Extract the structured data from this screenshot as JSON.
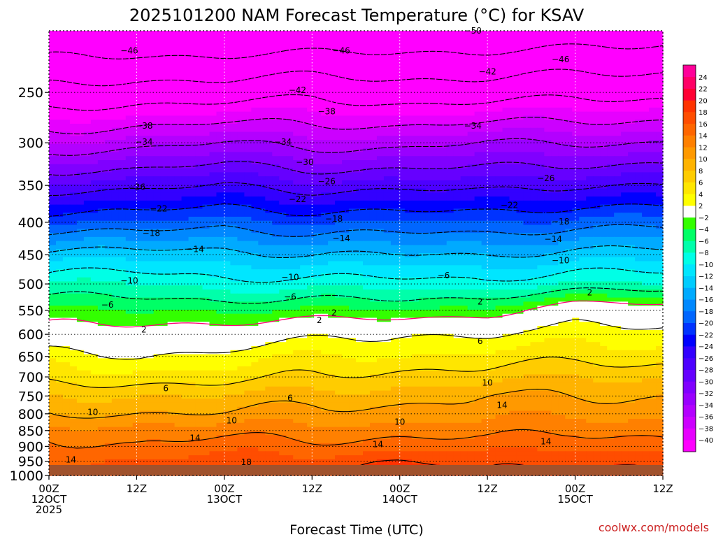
{
  "chart_data": {
    "type": "heatmap",
    "title": "2025101200 NAM Forecast Temperature (°C) for KSAV",
    "xlabel": "Forecast Time (UTC)",
    "ylabel": "",
    "credit": "coolwx.com/models",
    "x_range_hours": [
      0,
      84
    ],
    "x_ticks": [
      {
        "h": 0,
        "lines": [
          "00Z",
          "12OCT",
          "2025"
        ]
      },
      {
        "h": 12,
        "lines": [
          "12Z"
        ]
      },
      {
        "h": 24,
        "lines": [
          "00Z",
          "13OCT"
        ]
      },
      {
        "h": 36,
        "lines": [
          "12Z"
        ]
      },
      {
        "h": 48,
        "lines": [
          "00Z",
          "14OCT"
        ]
      },
      {
        "h": 60,
        "lines": [
          "12Z"
        ]
      },
      {
        "h": 72,
        "lines": [
          "00Z",
          "15OCT"
        ]
      },
      {
        "h": 84,
        "lines": [
          "12Z"
        ]
      }
    ],
    "y_axis": {
      "units": "hPa",
      "scale": "log-pressure",
      "top": 200,
      "bottom": 1000
    },
    "y_ticks": [
      250,
      300,
      350,
      400,
      450,
      500,
      550,
      600,
      650,
      700,
      750,
      800,
      850,
      900,
      950,
      1000
    ],
    "colorbar": {
      "bounds": [
        -42,
        -40,
        -38,
        -36,
        -34,
        -32,
        -30,
        -28,
        -26,
        -24,
        -22,
        -20,
        -18,
        -16,
        -14,
        -12,
        -10,
        -8,
        -6,
        -4,
        -2,
        2,
        4,
        6,
        8,
        10,
        12,
        14,
        16,
        18,
        20,
        22,
        24,
        26
      ],
      "colors": [
        "#ff00ff",
        "#e600ff",
        "#cc00ff",
        "#b300ff",
        "#9900ff",
        "#8000ff",
        "#6600ff",
        "#4d00ff",
        "#3300ff",
        "#0000ff",
        "#0033ff",
        "#0066ff",
        "#0088ff",
        "#00aaff",
        "#00ccff",
        "#00e6ff",
        "#00ffe6",
        "#00ffaa",
        "#00ff66",
        "#33ff00",
        "#ffffff",
        "#ffff00",
        "#ffe600",
        "#ffcc00",
        "#ffb300",
        "#ff9900",
        "#ff8000",
        "#ff6600",
        "#ff4d00",
        "#ff3300",
        "#ff0033",
        "#ff0066",
        "#ff0099"
      ],
      "labels": [
        -40,
        -38,
        -36,
        -34,
        -32,
        -30,
        -28,
        -26,
        -24,
        -22,
        -20,
        -18,
        -16,
        -14,
        -12,
        -10,
        -8,
        -6,
        -4,
        -2,
        2,
        4,
        6,
        8,
        10,
        12,
        14,
        16,
        18,
        20,
        22,
        24
      ]
    },
    "profiles": [
      {
        "h": 0,
        "levels": [
          [
            200,
            -54
          ],
          [
            250,
            -45
          ],
          [
            300,
            -36
          ],
          [
            350,
            -27
          ],
          [
            400,
            -20
          ],
          [
            450,
            -13
          ],
          [
            500,
            -8
          ],
          [
            550,
            -4
          ],
          [
            600,
            -1
          ],
          [
            650,
            3
          ],
          [
            700,
            5
          ],
          [
            750,
            8
          ],
          [
            800,
            10
          ],
          [
            850,
            13
          ],
          [
            900,
            15
          ],
          [
            950,
            16
          ],
          [
            1000,
            18
          ]
        ]
      },
      {
        "h": 12,
        "levels": [
          [
            200,
            -54
          ],
          [
            250,
            -44
          ],
          [
            300,
            -35
          ],
          [
            350,
            -27
          ],
          [
            400,
            -20
          ],
          [
            450,
            -13
          ],
          [
            500,
            -8
          ],
          [
            550,
            -4
          ],
          [
            600,
            -0.5
          ],
          [
            650,
            2
          ],
          [
            700,
            5
          ],
          [
            750,
            8
          ],
          [
            800,
            10
          ],
          [
            850,
            13
          ],
          [
            900,
            14
          ],
          [
            950,
            16
          ],
          [
            1000,
            17
          ]
        ]
      },
      {
        "h": 24,
        "levels": [
          [
            200,
            -54
          ],
          [
            250,
            -44
          ],
          [
            300,
            -34
          ],
          [
            350,
            -26
          ],
          [
            400,
            -19
          ],
          [
            450,
            -13
          ],
          [
            500,
            -9
          ],
          [
            550,
            -4
          ],
          [
            600,
            0
          ],
          [
            650,
            3
          ],
          [
            700,
            5
          ],
          [
            750,
            8
          ],
          [
            800,
            10
          ],
          [
            850,
            13
          ],
          [
            900,
            15
          ],
          [
            950,
            17
          ],
          [
            1000,
            18
          ]
        ]
      },
      {
        "h": 36,
        "levels": [
          [
            200,
            -54
          ],
          [
            250,
            -43
          ],
          [
            300,
            -35
          ],
          [
            350,
            -27
          ],
          [
            400,
            -20
          ],
          [
            450,
            -14
          ],
          [
            500,
            -9
          ],
          [
            550,
            -4
          ],
          [
            600,
            1
          ],
          [
            650,
            4
          ],
          [
            700,
            6
          ],
          [
            750,
            9
          ],
          [
            800,
            11
          ],
          [
            850,
            13
          ],
          [
            900,
            15
          ],
          [
            950,
            17
          ],
          [
            1000,
            18
          ]
        ]
      },
      {
        "h": 48,
        "levels": [
          [
            200,
            -53
          ],
          [
            250,
            -44
          ],
          [
            300,
            -35
          ],
          [
            350,
            -27
          ],
          [
            400,
            -20
          ],
          [
            450,
            -14
          ],
          [
            500,
            -9
          ],
          [
            550,
            -4
          ],
          [
            600,
            2
          ],
          [
            650,
            4
          ],
          [
            700,
            7
          ],
          [
            750,
            9
          ],
          [
            800,
            11
          ],
          [
            850,
            13
          ],
          [
            900,
            15
          ],
          [
            950,
            18
          ],
          [
            1000,
            20
          ]
        ]
      },
      {
        "h": 60,
        "levels": [
          [
            200,
            -53
          ],
          [
            250,
            -44
          ],
          [
            300,
            -34
          ],
          [
            350,
            -27
          ],
          [
            400,
            -20
          ],
          [
            450,
            -14
          ],
          [
            500,
            -9
          ],
          [
            550,
            -3
          ],
          [
            600,
            2
          ],
          [
            650,
            5
          ],
          [
            700,
            7
          ],
          [
            750,
            10
          ],
          [
            800,
            11
          ],
          [
            850,
            13
          ],
          [
            900,
            15
          ],
          [
            950,
            17
          ],
          [
            1000,
            18
          ]
        ]
      },
      {
        "h": 72,
        "levels": [
          [
            200,
            -53
          ],
          [
            250,
            -43
          ],
          [
            300,
            -34
          ],
          [
            350,
            -26
          ],
          [
            400,
            -19
          ],
          [
            450,
            -13
          ],
          [
            500,
            -8
          ],
          [
            550,
            0
          ],
          [
            600,
            3
          ],
          [
            650,
            5
          ],
          [
            700,
            8
          ],
          [
            750,
            10
          ],
          [
            800,
            12
          ],
          [
            850,
            14
          ],
          [
            900,
            16
          ],
          [
            950,
            18
          ],
          [
            1000,
            20
          ]
        ]
      },
      {
        "h": 84,
        "levels": [
          [
            200,
            -52
          ],
          [
            250,
            -43
          ],
          [
            300,
            -34
          ],
          [
            350,
            -26
          ],
          [
            400,
            -19
          ],
          [
            450,
            -13
          ],
          [
            500,
            -8
          ],
          [
            550,
            0
          ],
          [
            600,
            3
          ],
          [
            650,
            5
          ],
          [
            700,
            8
          ],
          [
            750,
            10
          ],
          [
            800,
            11
          ],
          [
            850,
            13
          ],
          [
            900,
            15
          ],
          [
            950,
            17
          ],
          [
            1000,
            18
          ]
        ]
      }
    ],
    "contours": [
      {
        "value": -50,
        "dashed": true,
        "label_at": [
          [
            58,
            200
          ]
        ]
      },
      {
        "value": -46,
        "dashed": true,
        "label_at": [
          [
            11,
            215
          ],
          [
            40,
            215
          ],
          [
            70,
            222
          ]
        ]
      },
      {
        "value": -42,
        "dashed": true,
        "label_at": [
          [
            34,
            248
          ],
          [
            60,
            232
          ]
        ]
      },
      {
        "value": -38,
        "dashed": true,
        "label_at": [
          [
            13,
            282
          ],
          [
            38,
            268
          ]
        ]
      },
      {
        "value": -34,
        "dashed": true,
        "label_at": [
          [
            13,
            299
          ],
          [
            32,
            299
          ],
          [
            58,
            282
          ]
        ]
      },
      {
        "value": -30,
        "dashed": true,
        "label_at": [
          [
            35,
            322
          ]
        ]
      },
      {
        "value": -26,
        "dashed": true,
        "label_at": [
          [
            12,
            352
          ],
          [
            38,
            345
          ],
          [
            68,
            341
          ]
        ]
      },
      {
        "value": -22,
        "dashed": true,
        "label_at": [
          [
            15,
            381
          ],
          [
            34,
            368
          ],
          [
            63,
            376
          ]
        ]
      },
      {
        "value": -18,
        "dashed": true,
        "label_at": [
          [
            14,
            416
          ],
          [
            39,
            395
          ],
          [
            70,
            399
          ]
        ]
      },
      {
        "value": -14,
        "dashed": true,
        "label_at": [
          [
            20,
            441
          ],
          [
            40,
            424
          ],
          [
            69,
            425
          ]
        ]
      },
      {
        "value": -10,
        "dashed": true,
        "label_at": [
          [
            11,
            494
          ],
          [
            33,
            488
          ],
          [
            70,
            459
          ]
        ]
      },
      {
        "value": -6,
        "dashed": true,
        "label_at": [
          [
            8,
            539
          ],
          [
            33,
            524
          ],
          [
            54,
            485
          ]
        ]
      },
      {
        "value": -2,
        "color": "#ff0077"
      },
      {
        "value": 2,
        "label_at": [
          [
            13,
            590
          ],
          [
            37,
            570
          ],
          [
            39,
            555
          ],
          [
            59,
            533
          ],
          [
            74,
            516
          ]
        ]
      },
      {
        "value": 6,
        "label_at": [
          [
            16,
            730
          ],
          [
            33,
            756
          ],
          [
            59,
            615
          ]
        ]
      },
      {
        "value": 10,
        "label_at": [
          [
            6,
            795
          ],
          [
            25,
            820
          ],
          [
            48,
            824
          ],
          [
            60,
            715
          ]
        ]
      },
      {
        "value": 14,
        "label_at": [
          [
            3,
            945
          ],
          [
            20,
            873
          ],
          [
            45,
            893
          ],
          [
            62,
            775
          ],
          [
            68,
            885
          ]
        ]
      },
      {
        "value": 18,
        "label_at": [
          [
            27,
            953
          ]
        ]
      }
    ]
  }
}
